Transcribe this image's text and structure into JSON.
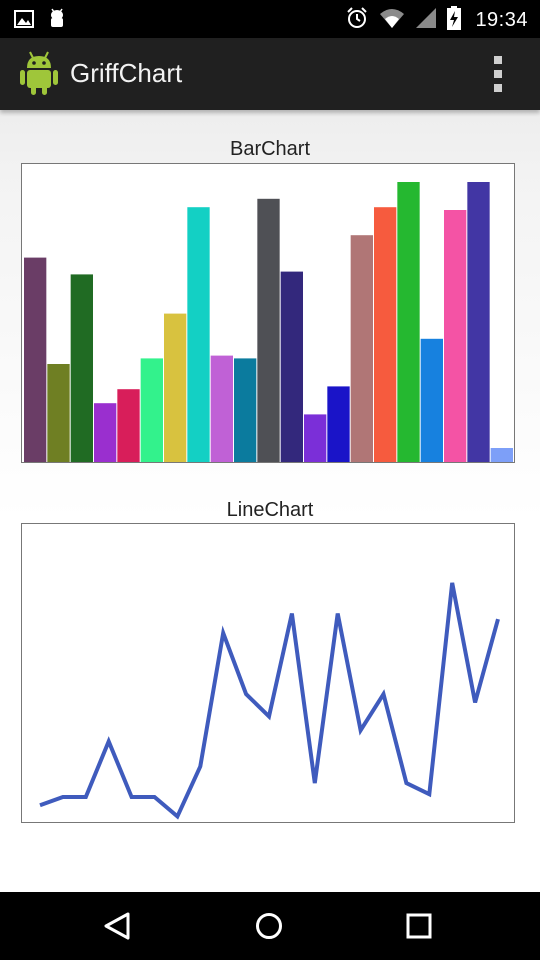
{
  "status_bar": {
    "time": "19:34",
    "left_icons": [
      "image-icon",
      "android-debug-icon"
    ],
    "right_icons": [
      "alarm-icon",
      "wifi-icon",
      "signal-icon",
      "battery-charging-icon"
    ]
  },
  "action_bar": {
    "title": "GriffChart",
    "icons": [
      "android-app-icon",
      "overflow-menu-icon"
    ]
  },
  "charts": {
    "bar_title": "BarChart",
    "line_title": "LineChart"
  },
  "chart_data": [
    {
      "type": "bar",
      "title": "BarChart",
      "ylim": [
        0,
        100
      ],
      "values": [
        73,
        35,
        67,
        21,
        26,
        37,
        53,
        91,
        38,
        37,
        94,
        68,
        17,
        27,
        81,
        91,
        100,
        44,
        90,
        100,
        5
      ],
      "colors": [
        "#6a3d66",
        "#6f7f23",
        "#206b23",
        "#9a2fcf",
        "#d81e5a",
        "#33f28c",
        "#d8c23f",
        "#13d0c4",
        "#c061d6",
        "#0b7b9e",
        "#4f5055",
        "#33287c",
        "#7b2fd8",
        "#1a14c8",
        "#b07676",
        "#f65b3e",
        "#25b830",
        "#1781df",
        "#f453a5",
        "#4236a4",
        "#7d9ff8"
      ]
    },
    {
      "type": "line",
      "title": "LineChart",
      "ylim": [
        0,
        100
      ],
      "values": [
        6,
        9,
        9,
        29,
        9,
        9,
        2,
        20,
        68,
        46,
        38,
        75,
        14,
        75,
        33,
        46,
        14,
        10,
        86,
        43,
        73
      ],
      "colors": [
        "#3f5bbd"
      ]
    }
  ],
  "nav_bar": {
    "icons": [
      "back-icon",
      "home-icon",
      "recents-icon"
    ]
  }
}
